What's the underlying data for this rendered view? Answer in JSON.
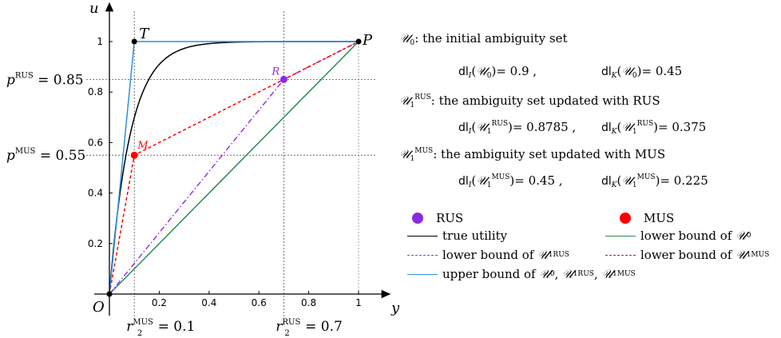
{
  "chart_data": {
    "type": "line",
    "xlabel": "y",
    "ylabel": "u",
    "xlim": [
      0,
      1
    ],
    "ylim": [
      0,
      1
    ],
    "xticks": [
      "0.2",
      "0.4",
      "0.6",
      "0.8",
      "1"
    ],
    "yticks": [
      "0.2",
      "0.4",
      "0.6",
      "0.8",
      "1"
    ],
    "origin_label": "O",
    "points": [
      {
        "label": "T",
        "x": 0.1,
        "y": 1.0,
        "color": "#000000"
      },
      {
        "label": "P",
        "x": 1.0,
        "y": 1.0,
        "color": "#000000"
      },
      {
        "label": "R",
        "x": 0.7,
        "y": 0.85,
        "color": "#8a2be2"
      },
      {
        "label": "M",
        "x": 0.1,
        "y": 0.55,
        "color": "#ff0000"
      }
    ],
    "series": [
      {
        "name": "true utility",
        "color": "#000000",
        "style": "solid",
        "fn": "1-exp(-12x)"
      },
      {
        "name": "lower bound of U0",
        "color": "#2e8b57",
        "style": "solid",
        "x": [
          0,
          1
        ],
        "y": [
          0,
          1
        ]
      },
      {
        "name": "lower bound of U1 RUS",
        "color": "#9b30ff",
        "style": "dashdot",
        "x": [
          0,
          0.7,
          1
        ],
        "y": [
          0,
          0.85,
          1
        ]
      },
      {
        "name": "lower bound of U1 MUS",
        "color": "#ff0000",
        "style": "dashed",
        "x": [
          0,
          0.1,
          0.7,
          1
        ],
        "y": [
          0,
          0.55,
          0.85,
          1
        ]
      },
      {
        "name": "upper bound",
        "color": "#2e8fe0",
        "style": "solid",
        "x": [
          0,
          0.1,
          1
        ],
        "y": [
          0,
          1,
          1
        ]
      }
    ],
    "reference_lines": {
      "horizontal": [
        {
          "y": 0.85,
          "label_p": "p",
          "label_sup": "RUS",
          "label_val": "= 0.85"
        },
        {
          "y": 0.55,
          "label_p": "p",
          "label_sup": "MUS",
          "label_val": "= 0.55"
        }
      ],
      "vertical": [
        {
          "x": 0.1,
          "label_r": "r",
          "label_sub": "2",
          "label_sup": "MUS",
          "label_val": "= 0.1"
        },
        {
          "x": 0.7,
          "label_r": "r",
          "label_sub": "2",
          "label_sup": "RUS",
          "label_val": "= 0.7"
        }
      ]
    }
  },
  "info": {
    "u0_symbol": "𝒰",
    "u0_sub": "0",
    "u0_desc": ": the initial ambiguity set",
    "dl_i": "dl",
    "dl_i_sub": "I",
    "dl_k_sub": "K",
    "u0_dli_val": "= 0.9 ,",
    "u0_dlk_val": "= 0.45",
    "u1_sub": "1",
    "rus": "RUS",
    "mus": "MUS",
    "u1r_desc": ": the ambiguity set updated with RUS",
    "u1r_dli_val": "= 0.8785 ,",
    "u1r_dlk_val": "= 0.375",
    "u1m_desc": ": the ambiguity set updated with MUS",
    "u1m_dli_val": "= 0.45 ,",
    "u1m_dlk_val": "= 0.225"
  },
  "legend": {
    "rus_label": "RUS",
    "mus_label": "MUS",
    "rus_color": "#8a2be2",
    "mus_color": "#ff0000",
    "true_utility": "true utility",
    "lower_u0": "lower bound of ",
    "lower_u1": "lower bound of ",
    "upper": "upper bound of "
  }
}
